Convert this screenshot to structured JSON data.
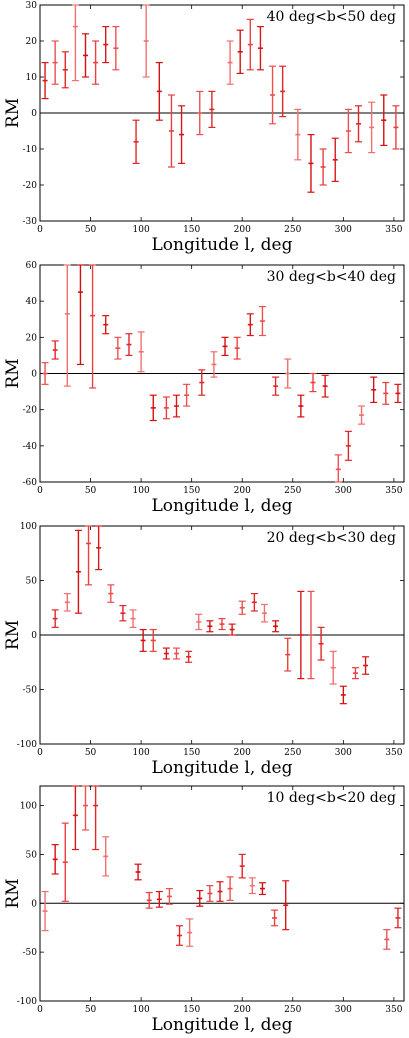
{
  "chart_data": [
    {
      "type": "scatter",
      "title": "40 deg<b<50 deg",
      "xlabel": "Longitude l, deg",
      "ylabel": "RM",
      "xlim": [
        0,
        360
      ],
      "ylim": [
        -30,
        30
      ],
      "xticks": [
        0,
        50,
        100,
        150,
        200,
        250,
        300,
        350
      ],
      "yticks": [
        -30,
        -20,
        -10,
        0,
        10,
        20,
        30
      ],
      "zero_line": true,
      "points": [
        {
          "x": 5,
          "y": 9,
          "err": 5
        },
        {
          "x": 15,
          "y": 14,
          "err": 6
        },
        {
          "x": 25,
          "y": 12,
          "err": 5
        },
        {
          "x": 35,
          "y": 24,
          "err": 15
        },
        {
          "x": 45,
          "y": 16,
          "err": 6
        },
        {
          "x": 55,
          "y": 14,
          "err": 6
        },
        {
          "x": 65,
          "y": 19,
          "err": 5
        },
        {
          "x": 75,
          "y": 18,
          "err": 6
        },
        {
          "x": 95,
          "y": -8,
          "err": 6
        },
        {
          "x": 105,
          "y": 20,
          "err": 10
        },
        {
          "x": 118,
          "y": 6,
          "err": 8
        },
        {
          "x": 130,
          "y": -5,
          "err": 10
        },
        {
          "x": 140,
          "y": -6,
          "err": 8
        },
        {
          "x": 158,
          "y": 0,
          "err": 6
        },
        {
          "x": 170,
          "y": 1,
          "err": 5
        },
        {
          "x": 188,
          "y": 14,
          "err": 6
        },
        {
          "x": 198,
          "y": 17,
          "err": 6
        },
        {
          "x": 208,
          "y": 19,
          "err": 7
        },
        {
          "x": 218,
          "y": 18,
          "err": 6
        },
        {
          "x": 230,
          "y": 5,
          "err": 8
        },
        {
          "x": 240,
          "y": 6,
          "err": 7
        },
        {
          "x": 255,
          "y": -6,
          "err": 7
        },
        {
          "x": 268,
          "y": -14,
          "err": 8
        },
        {
          "x": 280,
          "y": -15,
          "err": 5
        },
        {
          "x": 292,
          "y": -13,
          "err": 6
        },
        {
          "x": 305,
          "y": -5,
          "err": 6
        },
        {
          "x": 315,
          "y": -3,
          "err": 5
        },
        {
          "x": 328,
          "y": -4,
          "err": 7
        },
        {
          "x": 340,
          "y": -2,
          "err": 7
        },
        {
          "x": 352,
          "y": -4,
          "err": 6
        }
      ]
    },
    {
      "type": "scatter",
      "title": "30 deg<b<40 deg",
      "xlabel": "Longitude l, deg",
      "ylabel": "RM",
      "xlim": [
        0,
        360
      ],
      "ylim": [
        -60,
        60
      ],
      "xticks": [
        0,
        50,
        100,
        150,
        200,
        250,
        300,
        350
      ],
      "yticks": [
        -60,
        -40,
        -20,
        0,
        20,
        40,
        60
      ],
      "zero_line": true,
      "points": [
        {
          "x": 5,
          "y": 0,
          "err": 6
        },
        {
          "x": 15,
          "y": 13,
          "err": 5
        },
        {
          "x": 27,
          "y": 33,
          "err": 40
        },
        {
          "x": 40,
          "y": 45,
          "err": 40
        },
        {
          "x": 52,
          "y": 32,
          "err": 40
        },
        {
          "x": 65,
          "y": 27,
          "err": 5
        },
        {
          "x": 77,
          "y": 14,
          "err": 6
        },
        {
          "x": 88,
          "y": 16,
          "err": 6
        },
        {
          "x": 100,
          "y": 12,
          "err": 11
        },
        {
          "x": 112,
          "y": -19,
          "err": 7
        },
        {
          "x": 125,
          "y": -19,
          "err": 6
        },
        {
          "x": 135,
          "y": -18,
          "err": 6
        },
        {
          "x": 145,
          "y": -12,
          "err": 6
        },
        {
          "x": 160,
          "y": -5,
          "err": 7
        },
        {
          "x": 172,
          "y": 5,
          "err": 7
        },
        {
          "x": 183,
          "y": 15,
          "err": 5
        },
        {
          "x": 195,
          "y": 14,
          "err": 6
        },
        {
          "x": 208,
          "y": 27,
          "err": 6
        },
        {
          "x": 220,
          "y": 29,
          "err": 8
        },
        {
          "x": 233,
          "y": -7,
          "err": 5
        },
        {
          "x": 245,
          "y": 0,
          "err": 8
        },
        {
          "x": 258,
          "y": -18,
          "err": 6
        },
        {
          "x": 270,
          "y": -5,
          "err": 5
        },
        {
          "x": 282,
          "y": -7,
          "err": 6
        },
        {
          "x": 295,
          "y": -53,
          "err": 8
        },
        {
          "x": 305,
          "y": -40,
          "err": 8
        },
        {
          "x": 318,
          "y": -23,
          "err": 5
        },
        {
          "x": 330,
          "y": -9,
          "err": 7
        },
        {
          "x": 342,
          "y": -11,
          "err": 6
        },
        {
          "x": 354,
          "y": -11,
          "err": 5
        }
      ]
    },
    {
      "type": "scatter",
      "title": "20 deg<b<30 deg",
      "xlabel": "Longitude l, deg",
      "ylabel": "RM",
      "xlim": [
        0,
        360
      ],
      "ylim": [
        -100,
        100
      ],
      "xticks": [
        0,
        50,
        100,
        150,
        200,
        250,
        300,
        350
      ],
      "yticks": [
        -100,
        -50,
        0,
        50,
        100
      ],
      "zero_line": true,
      "points": [
        {
          "x": 15,
          "y": 15,
          "err": 8
        },
        {
          "x": 27,
          "y": 30,
          "err": 8
        },
        {
          "x": 38,
          "y": 58,
          "err": 38
        },
        {
          "x": 48,
          "y": 84,
          "err": 38
        },
        {
          "x": 58,
          "y": 80,
          "err": 20
        },
        {
          "x": 70,
          "y": 38,
          "err": 8
        },
        {
          "x": 82,
          "y": 20,
          "err": 7
        },
        {
          "x": 92,
          "y": 15,
          "err": 8
        },
        {
          "x": 102,
          "y": -5,
          "err": 10
        },
        {
          "x": 112,
          "y": -5,
          "err": 10
        },
        {
          "x": 125,
          "y": -17,
          "err": 5
        },
        {
          "x": 135,
          "y": -17,
          "err": 5
        },
        {
          "x": 147,
          "y": -20,
          "err": 5
        },
        {
          "x": 157,
          "y": 12,
          "err": 7
        },
        {
          "x": 168,
          "y": 8,
          "err": 5
        },
        {
          "x": 180,
          "y": 10,
          "err": 5
        },
        {
          "x": 190,
          "y": 5,
          "err": 5
        },
        {
          "x": 200,
          "y": 25,
          "err": 6
        },
        {
          "x": 212,
          "y": 30,
          "err": 8
        },
        {
          "x": 222,
          "y": 20,
          "err": 8
        },
        {
          "x": 233,
          "y": 8,
          "err": 5
        },
        {
          "x": 245,
          "y": -18,
          "err": 15
        },
        {
          "x": 258,
          "y": 0,
          "err": 40
        },
        {
          "x": 268,
          "y": 0,
          "err": 40
        },
        {
          "x": 278,
          "y": -8,
          "err": 15
        },
        {
          "x": 290,
          "y": -30,
          "err": 15
        },
        {
          "x": 300,
          "y": -55,
          "err": 8
        },
        {
          "x": 312,
          "y": -35,
          "err": 5
        },
        {
          "x": 322,
          "y": -28,
          "err": 8
        }
      ]
    },
    {
      "type": "scatter",
      "title": "10 deg<b<20 deg",
      "xlabel": "Longitude l, deg",
      "ylabel": "RM",
      "xlim": [
        0,
        360
      ],
      "ylim": [
        -100,
        120
      ],
      "xticks": [
        0,
        50,
        100,
        150,
        200,
        250,
        300,
        350
      ],
      "yticks": [
        -100,
        -50,
        0,
        50,
        100
      ],
      "zero_line": true,
      "points": [
        {
          "x": 5,
          "y": -8,
          "err": 20
        },
        {
          "x": 15,
          "y": 45,
          "err": 15
        },
        {
          "x": 25,
          "y": 42,
          "err": 40
        },
        {
          "x": 35,
          "y": 90,
          "err": 35
        },
        {
          "x": 45,
          "y": 100,
          "err": 25
        },
        {
          "x": 55,
          "y": 100,
          "err": 45
        },
        {
          "x": 65,
          "y": 48,
          "err": 20
        },
        {
          "x": 97,
          "y": 32,
          "err": 8
        },
        {
          "x": 108,
          "y": 3,
          "err": 8
        },
        {
          "x": 118,
          "y": 4,
          "err": 8
        },
        {
          "x": 128,
          "y": 7,
          "err": 8
        },
        {
          "x": 138,
          "y": -33,
          "err": 10
        },
        {
          "x": 148,
          "y": -30,
          "err": 14
        },
        {
          "x": 158,
          "y": 5,
          "err": 8
        },
        {
          "x": 168,
          "y": 10,
          "err": 8
        },
        {
          "x": 178,
          "y": 12,
          "err": 10
        },
        {
          "x": 188,
          "y": 15,
          "err": 12
        },
        {
          "x": 200,
          "y": 38,
          "err": 12
        },
        {
          "x": 210,
          "y": 18,
          "err": 8
        },
        {
          "x": 220,
          "y": 15,
          "err": 6
        },
        {
          "x": 232,
          "y": -15,
          "err": 8
        },
        {
          "x": 243,
          "y": -2,
          "err": 25
        },
        {
          "x": 343,
          "y": -37,
          "err": 10
        },
        {
          "x": 354,
          "y": -15,
          "err": 10
        }
      ]
    }
  ]
}
